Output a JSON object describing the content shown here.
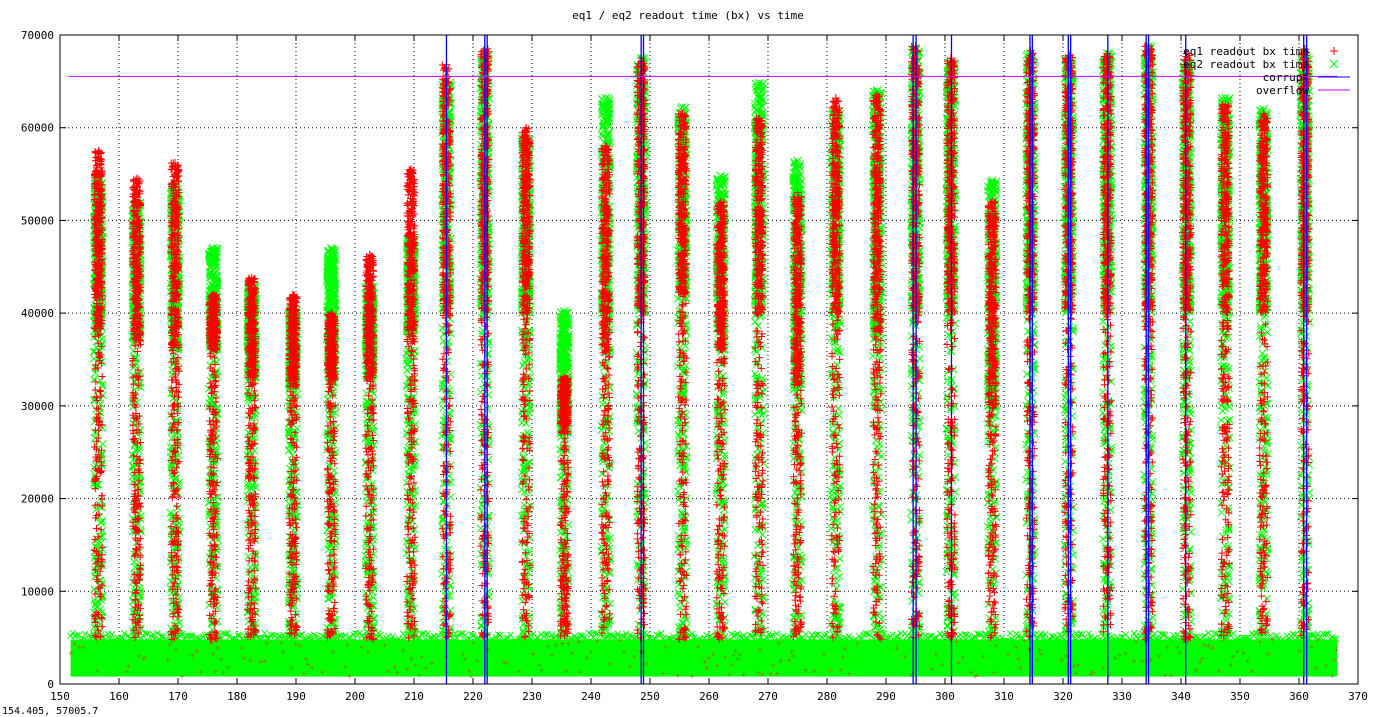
{
  "chart_data": {
    "type": "scatter",
    "title": "eq1 / eq2 readout time (bx) vs time",
    "xlabel": "",
    "ylabel": "",
    "xlim": [
      150,
      370
    ],
    "ylim": [
      0,
      70000
    ],
    "xticks": [
      150,
      160,
      170,
      180,
      190,
      200,
      210,
      220,
      230,
      240,
      250,
      260,
      270,
      280,
      290,
      300,
      310,
      320,
      330,
      340,
      350,
      360,
      370
    ],
    "yticks": [
      0,
      10000,
      20000,
      30000,
      40000,
      50000,
      60000,
      70000
    ],
    "grid": true,
    "legend_position": "top-right",
    "series": [
      {
        "name": "eq1 readout bx time",
        "marker": "plus",
        "color": "#ff0000"
      },
      {
        "name": "eq2 readout bx time",
        "marker": "cross",
        "color": "#00ff00"
      },
      {
        "name": "corrupt",
        "marker": "line",
        "color": "#0000ff"
      },
      {
        "name": "overflow",
        "marker": "line",
        "color": "#c000ff"
      }
    ],
    "baseline_band": {
      "x_range": [
        151.8,
        366.5
      ],
      "y_range": [
        800,
        4800
      ]
    },
    "burst_columns": [
      {
        "x": 156.5,
        "eq1_max": 57500,
        "eq2_max": 54800,
        "dense_from": 38000
      },
      {
        "x": 163.0,
        "eq1_max": 54500,
        "eq2_max": 52000,
        "dense_from": 37000
      },
      {
        "x": 169.5,
        "eq1_max": 56200,
        "eq2_max": 54000,
        "dense_from": 36000
      },
      {
        "x": 176.0,
        "eq1_max": 42000,
        "eq2_max": 47000,
        "dense_from": 36000
      },
      {
        "x": 182.5,
        "eq1_max": 43800,
        "eq2_max": 43000,
        "dense_from": 33000
      },
      {
        "x": 189.5,
        "eq1_max": 42000,
        "eq2_max": 40500,
        "dense_from": 32000
      },
      {
        "x": 196.0,
        "eq1_max": 40000,
        "eq2_max": 47000,
        "dense_from": 33000
      },
      {
        "x": 202.5,
        "eq1_max": 46300,
        "eq2_max": 43000,
        "dense_from": 33000
      },
      {
        "x": 209.5,
        "eq1_max": 55500,
        "eq2_max": 48000,
        "dense_from": 38000
      },
      {
        "x": 215.5,
        "eq1_max": 66800,
        "eq2_max": 65000,
        "dense_from": 40000
      },
      {
        "x": 222.0,
        "eq1_max": 68500,
        "eq2_max": 68000,
        "dense_from": 40000
      },
      {
        "x": 229.0,
        "eq1_max": 60000,
        "eq2_max": 59000,
        "dense_from": 40000
      },
      {
        "x": 235.5,
        "eq1_max": 33000,
        "eq2_max": 40200,
        "dense_from": 28000
      },
      {
        "x": 242.5,
        "eq1_max": 58000,
        "eq2_max": 63200,
        "dense_from": 36000
      },
      {
        "x": 248.5,
        "eq1_max": 67500,
        "eq2_max": 67500,
        "dense_from": 40000
      },
      {
        "x": 255.5,
        "eq1_max": 61500,
        "eq2_max": 62200,
        "dense_from": 42000
      },
      {
        "x": 262.0,
        "eq1_max": 52000,
        "eq2_max": 54800,
        "dense_from": 36000
      },
      {
        "x": 268.5,
        "eq1_max": 61000,
        "eq2_max": 64800,
        "dense_from": 40000
      },
      {
        "x": 275.0,
        "eq1_max": 53000,
        "eq2_max": 56400,
        "dense_from": 32000
      },
      {
        "x": 281.5,
        "eq1_max": 63200,
        "eq2_max": 62000,
        "dense_from": 40000
      },
      {
        "x": 288.5,
        "eq1_max": 63500,
        "eq2_max": 64000,
        "dense_from": 38000
      },
      {
        "x": 295.0,
        "eq1_max": 68800,
        "eq2_max": 68600,
        "dense_from": 40000
      },
      {
        "x": 301.0,
        "eq1_max": 67500,
        "eq2_max": 67000,
        "dense_from": 40000
      },
      {
        "x": 308.0,
        "eq1_max": 52000,
        "eq2_max": 54300,
        "dense_from": 30000
      },
      {
        "x": 314.5,
        "eq1_max": 68300,
        "eq2_max": 68000,
        "dense_from": 40000
      },
      {
        "x": 321.0,
        "eq1_max": 67800,
        "eq2_max": 67500,
        "dense_from": 40000
      },
      {
        "x": 327.5,
        "eq1_max": 68000,
        "eq2_max": 68000,
        "dense_from": 40000
      },
      {
        "x": 334.5,
        "eq1_max": 68800,
        "eq2_max": 68800,
        "dense_from": 40000
      },
      {
        "x": 341.0,
        "eq1_max": 68000,
        "eq2_max": 67000,
        "dense_from": 40000
      },
      {
        "x": 347.5,
        "eq1_max": 62500,
        "eq2_max": 63200,
        "dense_from": 40000
      },
      {
        "x": 354.0,
        "eq1_max": 61500,
        "eq2_max": 62000,
        "dense_from": 40000
      },
      {
        "x": 361.0,
        "eq1_max": 68500,
        "eq2_max": 68000,
        "dense_from": 40000
      }
    ],
    "corrupt_x": [
      215.5,
      222.0,
      222.4,
      248.5,
      248.9,
      294.6,
      295.1,
      301.1,
      314.4,
      314.8,
      320.9,
      321.3,
      327.6,
      334.1,
      334.5,
      340.8,
      360.8,
      361.3
    ],
    "overflow_y": 65535
  },
  "coordinate_readout": "154.405,  57005.7"
}
